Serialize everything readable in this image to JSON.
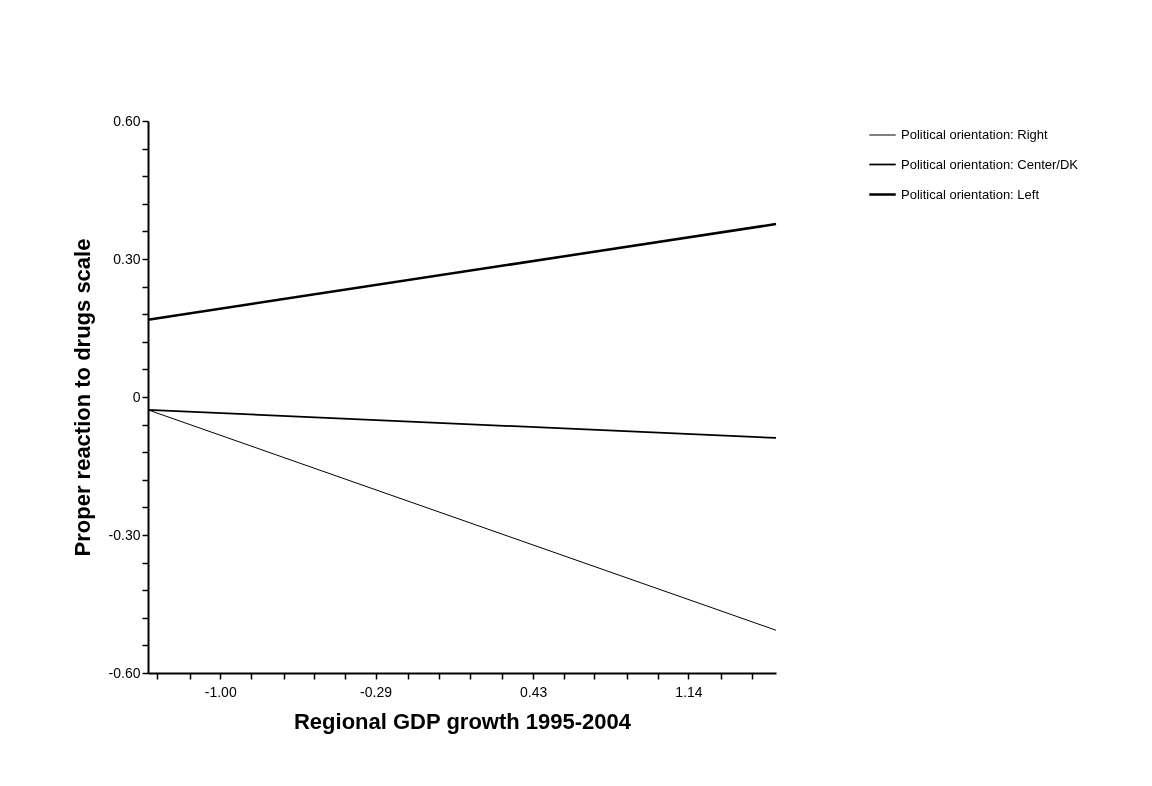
{
  "chart_data": {
    "type": "line",
    "xlabel": "Regional GDP growth 1995-2004",
    "ylabel": "Proper reaction to drugs scale",
    "xlim": [
      -1.33,
      1.54
    ],
    "ylim": [
      -0.6,
      0.6
    ],
    "xticks": [
      {
        "value": -1.29,
        "label": null
      },
      {
        "value": -1.14,
        "label": null
      },
      {
        "value": -1.0,
        "label": "-1.00"
      },
      {
        "value": -0.86,
        "label": null
      },
      {
        "value": -0.71,
        "label": null
      },
      {
        "value": -0.57,
        "label": null
      },
      {
        "value": -0.43,
        "label": null
      },
      {
        "value": -0.29,
        "label": "-0.29"
      },
      {
        "value": -0.14,
        "label": null
      },
      {
        "value": 0,
        "label": null
      },
      {
        "value": 0.14,
        "label": null
      },
      {
        "value": 0.29,
        "label": null
      },
      {
        "value": 0.43,
        "label": "0.43"
      },
      {
        "value": 0.57,
        "label": null
      },
      {
        "value": 0.71,
        "label": null
      },
      {
        "value": 0.86,
        "label": null
      },
      {
        "value": 1.0,
        "label": null
      },
      {
        "value": 1.14,
        "label": "1.14"
      },
      {
        "value": 1.29,
        "label": null
      },
      {
        "value": 1.43,
        "label": null
      }
    ],
    "yticks": [
      {
        "value": -0.6,
        "label": "-0.60"
      },
      {
        "value": -0.54,
        "label": null
      },
      {
        "value": -0.48,
        "label": null
      },
      {
        "value": -0.42,
        "label": null
      },
      {
        "value": -0.36,
        "label": null
      },
      {
        "value": -0.3,
        "label": "-0.30"
      },
      {
        "value": -0.24,
        "label": null
      },
      {
        "value": -0.18,
        "label": null
      },
      {
        "value": -0.12,
        "label": null
      },
      {
        "value": -0.06,
        "label": null
      },
      {
        "value": 0,
        "label": "0"
      },
      {
        "value": 0.06,
        "label": null
      },
      {
        "value": 0.12,
        "label": null
      },
      {
        "value": 0.18,
        "label": null
      },
      {
        "value": 0.24,
        "label": null
      },
      {
        "value": 0.3,
        "label": "0.30"
      },
      {
        "value": 0.36,
        "label": null
      },
      {
        "value": 0.42,
        "label": null
      },
      {
        "value": 0.48,
        "label": null
      },
      {
        "value": 0.54,
        "label": null
      },
      {
        "value": 0.6,
        "label": "0.60"
      }
    ],
    "x": [
      -1.33,
      1.54
    ],
    "series": [
      {
        "name": "Political orientation: Right",
        "color": "#000000",
        "values": [
          -0.028,
          -0.507
        ]
      },
      {
        "name": "Political orientation: Center/DK",
        "color": "#000000",
        "values": [
          -0.028,
          -0.089
        ]
      },
      {
        "name": "Political orientation: Left",
        "color": "#000000",
        "values": [
          0.168,
          0.376
        ]
      }
    ],
    "legend": "top right",
    "grid": false,
    "marker": "none",
    "line_style": "solid"
  }
}
